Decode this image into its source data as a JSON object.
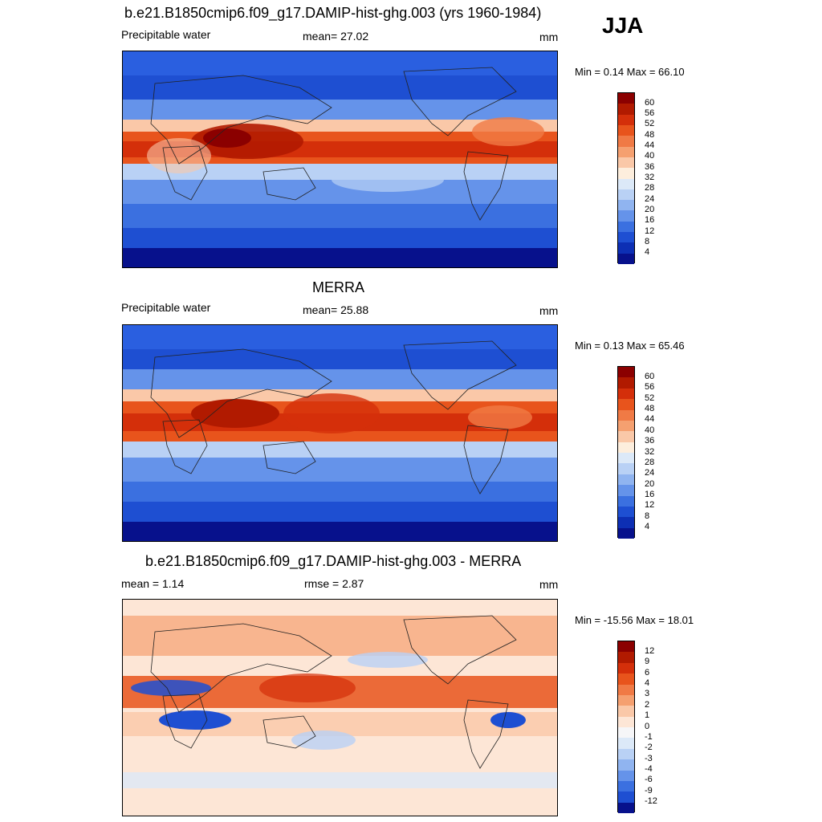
{
  "figure": {
    "season": "JJA"
  },
  "panels": [
    {
      "id": "model",
      "title": "b.e21.B1850cmip6.f09_g17.DAMIP-hist-ghg.003 (yrs 1960-1984)",
      "left_label": "Precipitable water",
      "center_label": "mean=  27.02",
      "units": "mm",
      "minmax": "Min =   0.14 Max =  66.10",
      "colorbar": {
        "ticks": [
          "60",
          "56",
          "52",
          "48",
          "44",
          "40",
          "36",
          "32",
          "28",
          "24",
          "20",
          "16",
          "12",
          "8",
          "4"
        ],
        "colors": [
          "#8b0000",
          "#b11a00",
          "#d42f0a",
          "#e8541c",
          "#f07a45",
          "#f5a070",
          "#fac8a8",
          "#fdeedd",
          "#dce9f8",
          "#b9d1f5",
          "#90b4f0",
          "#6593ea",
          "#3b70e0",
          "#1e4fd2",
          "#0d2fb4",
          "#07118c"
        ]
      }
    },
    {
      "id": "obs",
      "title": "MERRA",
      "left_label": "Precipitable water",
      "center_label": "mean=  25.88",
      "units": "mm",
      "minmax": "Min =   0.13 Max =  65.46",
      "colorbar": {
        "ticks": [
          "60",
          "56",
          "52",
          "48",
          "44",
          "40",
          "36",
          "32",
          "28",
          "24",
          "20",
          "16",
          "12",
          "8",
          "4"
        ],
        "colors": [
          "#8b0000",
          "#b11a00",
          "#d42f0a",
          "#e8541c",
          "#f07a45",
          "#f5a070",
          "#fac8a8",
          "#fdeedd",
          "#dce9f8",
          "#b9d1f5",
          "#90b4f0",
          "#6593ea",
          "#3b70e0",
          "#1e4fd2",
          "#0d2fb4",
          "#07118c"
        ]
      }
    },
    {
      "id": "diff",
      "title": "b.e21.B1850cmip6.f09_g17.DAMIP-hist-ghg.003 - MERRA",
      "left_label": "mean =   1.14",
      "center_label": "rmse =   2.87",
      "units": "mm",
      "minmax": "Min = -15.56 Max =  18.01",
      "colorbar": {
        "ticks": [
          "12",
          "9",
          "6",
          "4",
          "3",
          "2",
          "1",
          "0",
          "-1",
          "-2",
          "-3",
          "-4",
          "-6",
          "-9",
          "-12"
        ],
        "colors": [
          "#8b0000",
          "#b11a00",
          "#d42f0a",
          "#e8541c",
          "#f07a45",
          "#f5a070",
          "#fac8a8",
          "#fde6d6",
          "#f6f6f8",
          "#dce9f8",
          "#b9d1f5",
          "#90b4f0",
          "#6593ea",
          "#3b70e0",
          "#1e4fd2",
          "#07118c"
        ]
      }
    }
  ],
  "chart_data": [
    {
      "type": "heatmap",
      "title": "b.e21.B1850cmip6.f09_g17.DAMIP-hist-ghg.003 (yrs 1960-1984)",
      "variable": "Precipitable water",
      "units": "mm",
      "mean": 27.02,
      "min": 0.14,
      "max": 66.1,
      "levels": [
        4,
        8,
        12,
        16,
        20,
        24,
        28,
        32,
        36,
        40,
        44,
        48,
        52,
        56,
        60
      ]
    },
    {
      "type": "heatmap",
      "title": "MERRA",
      "variable": "Precipitable water",
      "units": "mm",
      "mean": 25.88,
      "min": 0.13,
      "max": 65.46,
      "levels": [
        4,
        8,
        12,
        16,
        20,
        24,
        28,
        32,
        36,
        40,
        44,
        48,
        52,
        56,
        60
      ]
    },
    {
      "type": "heatmap",
      "title": "b.e21.B1850cmip6.f09_g17.DAMIP-hist-ghg.003 - MERRA",
      "units": "mm",
      "mean": 1.14,
      "rmse": 2.87,
      "min": -15.56,
      "max": 18.01,
      "levels": [
        -12,
        -9,
        -6,
        -4,
        -3,
        -2,
        -1,
        0,
        1,
        2,
        3,
        4,
        6,
        9,
        12
      ]
    }
  ]
}
